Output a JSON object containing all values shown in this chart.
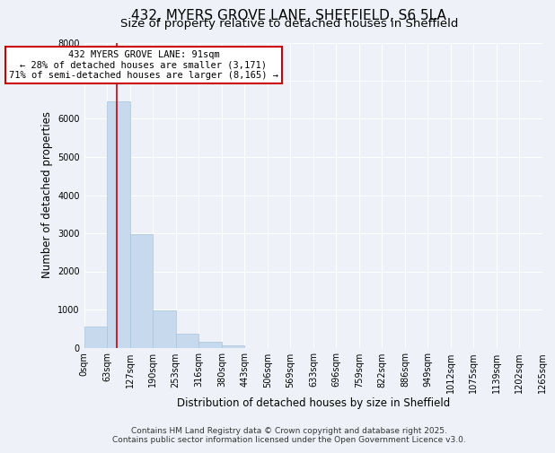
{
  "title": "432, MYERS GROVE LANE, SHEFFIELD, S6 5LA",
  "subtitle": "Size of property relative to detached houses in Sheffield",
  "bar_edges": [
    0,
    63,
    127,
    190,
    253,
    316,
    380,
    443,
    506,
    569,
    633,
    696,
    759,
    822,
    886,
    949,
    1012,
    1075,
    1139,
    1202,
    1265
  ],
  "bar_values": [
    550,
    6450,
    2980,
    970,
    370,
    155,
    65,
    0,
    0,
    0,
    0,
    0,
    0,
    0,
    0,
    0,
    0,
    0,
    0,
    0
  ],
  "bar_color": "#c6d9ed",
  "bar_edgecolor": "#a8c4dc",
  "red_line_x": 91,
  "annotation_title": "432 MYERS GROVE LANE: 91sqm",
  "annotation_line2": "← 28% of detached houses are smaller (3,171)",
  "annotation_line3": "71% of semi-detached houses are larger (8,165) →",
  "annotation_box_facecolor": "#ffffff",
  "annotation_box_edgecolor": "#cc0000",
  "xlabel": "Distribution of detached houses by size in Sheffield",
  "ylabel": "Number of detached properties",
  "ylim": [
    0,
    8000
  ],
  "yticks": [
    0,
    1000,
    2000,
    3000,
    4000,
    5000,
    6000,
    7000,
    8000
  ],
  "xlim": [
    0,
    1265
  ],
  "xtick_labels": [
    "0sqm",
    "63sqm",
    "127sqm",
    "190sqm",
    "253sqm",
    "316sqm",
    "380sqm",
    "443sqm",
    "506sqm",
    "569sqm",
    "633sqm",
    "696sqm",
    "759sqm",
    "822sqm",
    "886sqm",
    "949sqm",
    "1012sqm",
    "1075sqm",
    "1139sqm",
    "1202sqm",
    "1265sqm"
  ],
  "footer_line1": "Contains HM Land Registry data © Crown copyright and database right 2025.",
  "footer_line2": "Contains public sector information licensed under the Open Government Licence v3.0.",
  "background_color": "#eef2f8",
  "grid_color": "#ffffff",
  "title_fontsize": 11,
  "subtitle_fontsize": 9.5,
  "axis_label_fontsize": 8.5,
  "tick_fontsize": 7,
  "annotation_fontsize": 7.5,
  "footer_fontsize": 6.5
}
